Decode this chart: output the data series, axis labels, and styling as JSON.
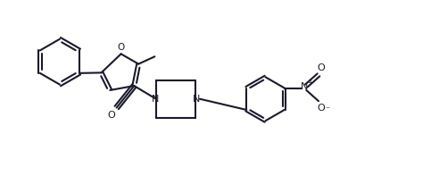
{
  "bg_color": "#ffffff",
  "line_color": "#1a1a2e",
  "line_width": 1.5,
  "fig_width": 4.92,
  "fig_height": 1.97,
  "dpi": 100,
  "xlim": [
    0,
    10
  ],
  "ylim": [
    0,
    4
  ]
}
